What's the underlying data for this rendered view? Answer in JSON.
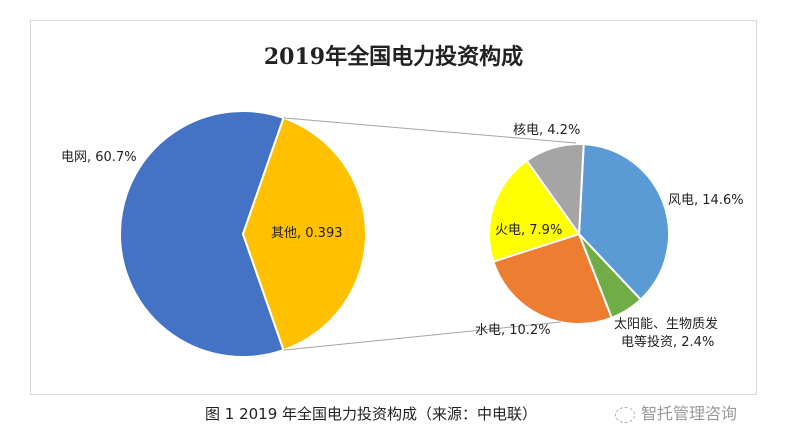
{
  "chart_data": {
    "type": "pie",
    "subtype": "pie-of-pie",
    "title": "2019年全国电力投资构成",
    "main_pie": [
      {
        "label": "电网",
        "value": 60.7,
        "display": "电网, 60.7%",
        "color": "#4472C4"
      },
      {
        "label": "其他",
        "value": 39.3,
        "display": "其他, 0.393",
        "color": "#FFC000"
      }
    ],
    "secondary_pie": [
      {
        "label": "风电",
        "value": 14.6,
        "display": "风电, 14.6%",
        "color": "#5B9BD5"
      },
      {
        "label": "太阳能、生物质发电等投资",
        "value": 2.4,
        "display_line1": "太阳能、生物质发",
        "display_line2": "电等投资, 2.4%",
        "color": "#70AD47"
      },
      {
        "label": "水电",
        "value": 10.2,
        "display": "水电, 10.2%",
        "color": "#ED7D31"
      },
      {
        "label": "火电",
        "value": 7.9,
        "display": "火电, 7.9%",
        "color": "#FFFF00"
      },
      {
        "label": "核电",
        "value": 4.2,
        "display": "核电, 4.2%",
        "color": "#A5A5A5"
      }
    ]
  },
  "caption": "图 1 2019 年全国电力投资构成（来源：中电联）",
  "watermark": "智托管理咨询"
}
